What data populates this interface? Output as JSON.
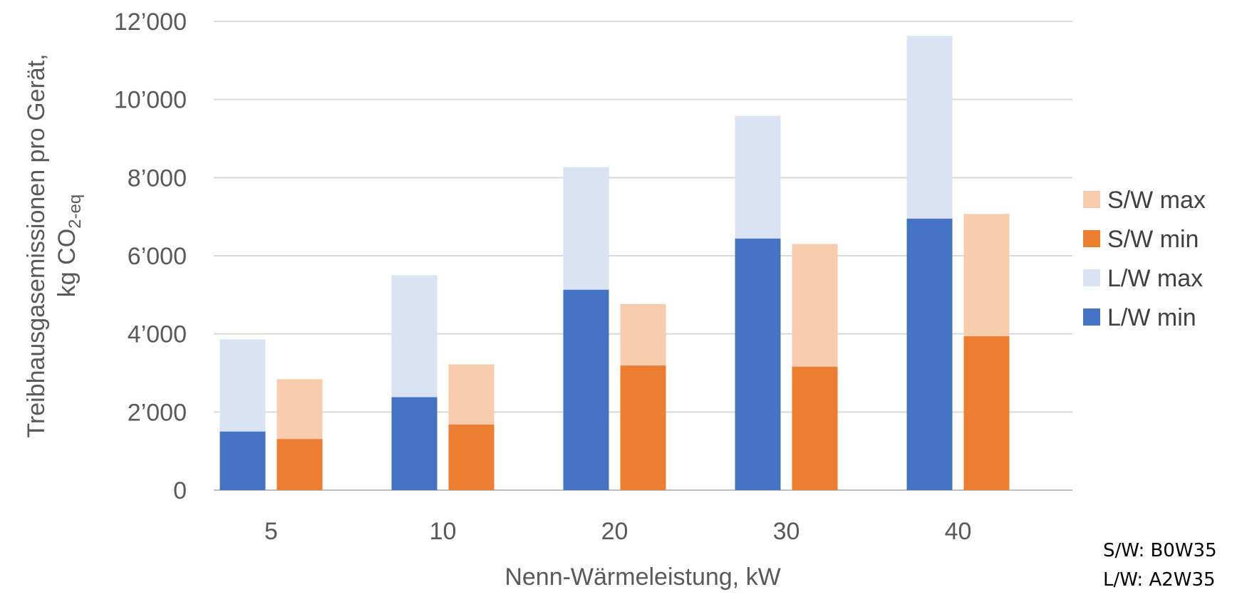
{
  "chart_data": {
    "type": "bar",
    "stacked": true,
    "categories": [
      "5",
      "10",
      "20",
      "30",
      "40"
    ],
    "xlabel": "Nenn-Wärmeleistung,  kW",
    "ylabel_line1": "Treibhausgasemissionen  pro Gerät,",
    "ylabel_line2_prefix": "kg CO",
    "ylabel_line2_sub": "2-eq",
    "ylim": [
      0,
      12000
    ],
    "yticks": [
      {
        "value": 0,
        "label": "0"
      },
      {
        "value": 2000,
        "label": "2’000"
      },
      {
        "value": 4000,
        "label": "4’000"
      },
      {
        "value": 6000,
        "label": "6’000"
      },
      {
        "value": 8000,
        "label": "8’000"
      },
      {
        "value": 10000,
        "label": "10’000"
      },
      {
        "value": 12000,
        "label": "12’000"
      }
    ],
    "grid": true,
    "legend_position": "right",
    "stacks": [
      {
        "group": "L/W",
        "min_name": "L/W min",
        "max_name": "L/W max",
        "min_color": "#4472C4",
        "max_color": "#DAE3F3",
        "min": [
          1500,
          2380,
          5130,
          6440,
          6950
        ],
        "max": [
          3860,
          5500,
          8270,
          9580,
          11630
        ]
      },
      {
        "group": "S/W",
        "min_name": "S/W min",
        "max_name": "S/W max",
        "min_color": "#ED7D31",
        "max_color": "#F8CBAD",
        "min": [
          1310,
          1680,
          3190,
          3160,
          3940
        ],
        "max": [
          2840,
          3220,
          4760,
          6300,
          7070
        ]
      }
    ],
    "legend": [
      {
        "label": "S/W max",
        "color": "#F8CBAD"
      },
      {
        "label": "S/W min",
        "color": "#ED7D31"
      },
      {
        "label": "L/W max",
        "color": "#DAE3F3"
      },
      {
        "label": "L/W min",
        "color": "#4472C4"
      }
    ]
  },
  "notes": {
    "sw": "S/W: B0W35",
    "lw": "L/W: A2W35"
  }
}
